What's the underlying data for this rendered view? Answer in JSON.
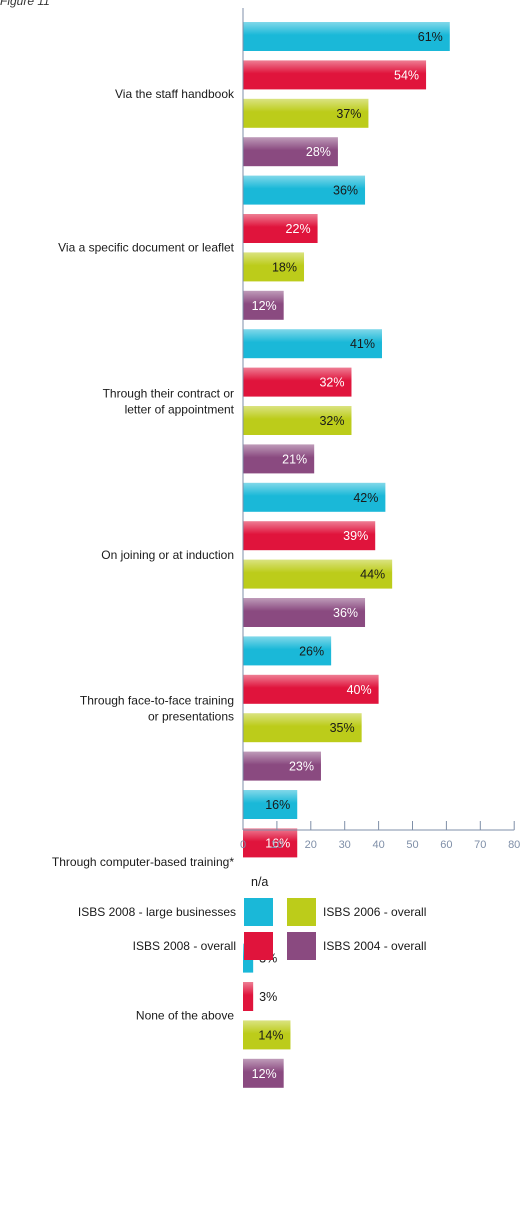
{
  "figure_label": "Figure 11",
  "chart_data": {
    "type": "bar",
    "orientation": "horizontal",
    "categories": [
      "Via the staff handbook",
      "Via a specific document or leaflet",
      "Through their contract or letter of appointment",
      "On joining or at induction",
      "Through face-to-face training or presentations",
      "Through computer-based training*",
      "None of the above"
    ],
    "category_lines": [
      [
        "Via the staff handbook"
      ],
      [
        "Via a specific document or leaflet"
      ],
      [
        "Through their contract or",
        "letter of appointment"
      ],
      [
        "On joining or at induction"
      ],
      [
        "Through face-to-face training",
        "or presentations"
      ],
      [
        "Through computer-based training*"
      ],
      [
        "None of the above"
      ]
    ],
    "series": [
      {
        "name": "ISBS 2008 - large businesses",
        "color": "#1ab8d8",
        "label_color": "#1a1a1a",
        "values": [
          61,
          36,
          41,
          42,
          26,
          16,
          3
        ]
      },
      {
        "name": "ISBS 2008 - overall",
        "color": "#e0143c",
        "label_color": "#ffffff",
        "values": [
          54,
          22,
          32,
          39,
          40,
          16,
          3
        ]
      },
      {
        "name": "ISBS 2006 - overall",
        "color": "#bccc1a",
        "label_color": "#1a1a1a",
        "values": [
          37,
          18,
          32,
          44,
          35,
          null,
          14
        ]
      },
      {
        "name": "ISBS 2004 - overall",
        "color": "#8a4a80",
        "label_color": "#ffffff",
        "values": [
          28,
          12,
          21,
          36,
          23,
          null,
          12
        ]
      }
    ],
    "na_label": "n/a",
    "value_suffix": "%",
    "xlim": [
      0,
      80
    ],
    "xticks": [
      0,
      10,
      20,
      30,
      40,
      50,
      60,
      70,
      80
    ],
    "grid": false,
    "legend_position": "bottom"
  }
}
